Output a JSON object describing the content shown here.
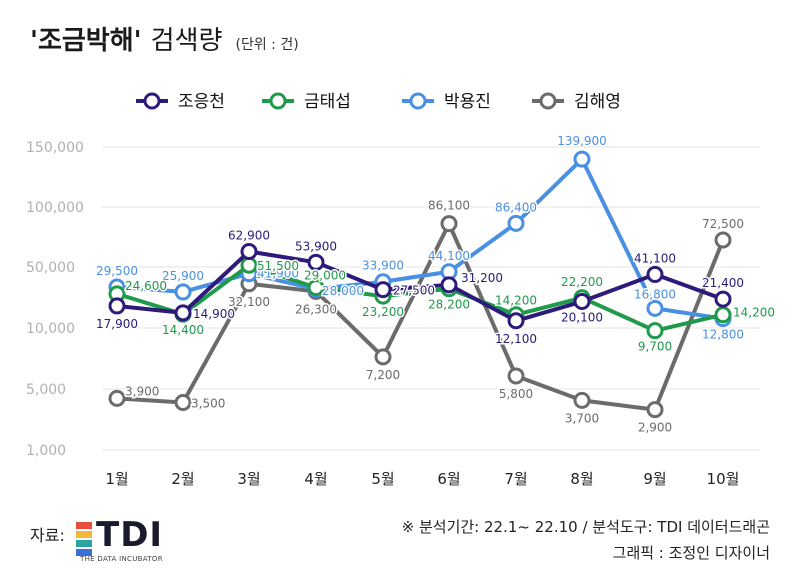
{
  "header": {
    "title_main": "'조금박해'",
    "title_sub": "검색량",
    "unit": "(단위 : 건)"
  },
  "footer": {
    "source_label": "자료:",
    "logo_text": "TDI",
    "logo_tagline": "THE DATA INCUBATOR",
    "note_line1": "※ 분석기간: 22.1~ 22.10 / 분석도구: TDI 데이터드래곤",
    "note_line2": "그래픽 : 조정인 디자이너"
  },
  "colors": {
    "logo_bars": [
      "#e94e3c",
      "#f4b63b",
      "#2aa5a0",
      "#3b6ed6"
    ]
  },
  "chart_data": {
    "type": "line",
    "categories": [
      "1월",
      "2월",
      "3월",
      "4월",
      "5월",
      "6월",
      "7월",
      "8월",
      "9월",
      "10월"
    ],
    "yticks": [
      "150,000",
      "100,000",
      "50,000",
      "10,000",
      "5,000",
      "1,000"
    ],
    "ytick_values": [
      150000,
      100000,
      50000,
      10000,
      5000,
      1000
    ],
    "scale": "non-linear (log-like)",
    "grid": true,
    "legend": "top",
    "series": [
      {
        "name": "조응천",
        "color": "#2d1a7a",
        "values": [
          17900,
          14900,
          62900,
          53900,
          27500,
          31200,
          12100,
          20100,
          41100,
          21400
        ],
        "labels": [
          "17,900",
          "14,900",
          "62,900",
          "53,900",
          "27,500",
          "31,200",
          "12,100",
          "20,100",
          "41,100",
          "21,400"
        ]
      },
      {
        "name": "금태섭",
        "color": "#1e9a4a",
        "values": [
          24600,
          14400,
          51500,
          29000,
          23200,
          28200,
          14200,
          22200,
          9700,
          14200
        ],
        "labels": [
          "24,600",
          "14,400",
          "51,500",
          "29,000",
          "23,200",
          "28,200",
          "14,200",
          "22,200",
          "9,700",
          "14,200"
        ]
      },
      {
        "name": "박용진",
        "color": "#4a90e2",
        "values": [
          29500,
          25900,
          41900,
          28000,
          33900,
          44100,
          86400,
          139900,
          16800,
          12800
        ],
        "labels": [
          "29,500",
          "25,900",
          "41,900",
          "28,000",
          "33,900",
          "44,100",
          "86,400",
          "139,900",
          "16,800",
          "12,800"
        ]
      },
      {
        "name": "김해영",
        "color": "#6b6b6b",
        "values": [
          3900,
          3500,
          32100,
          26300,
          7200,
          86100,
          5800,
          3700,
          2900,
          72500
        ],
        "labels": [
          "3,900",
          "3,500",
          "32,100",
          "26,300",
          "7,200",
          "86,100",
          "5,800",
          "3,700",
          "2,900",
          "72,500"
        ]
      }
    ]
  }
}
